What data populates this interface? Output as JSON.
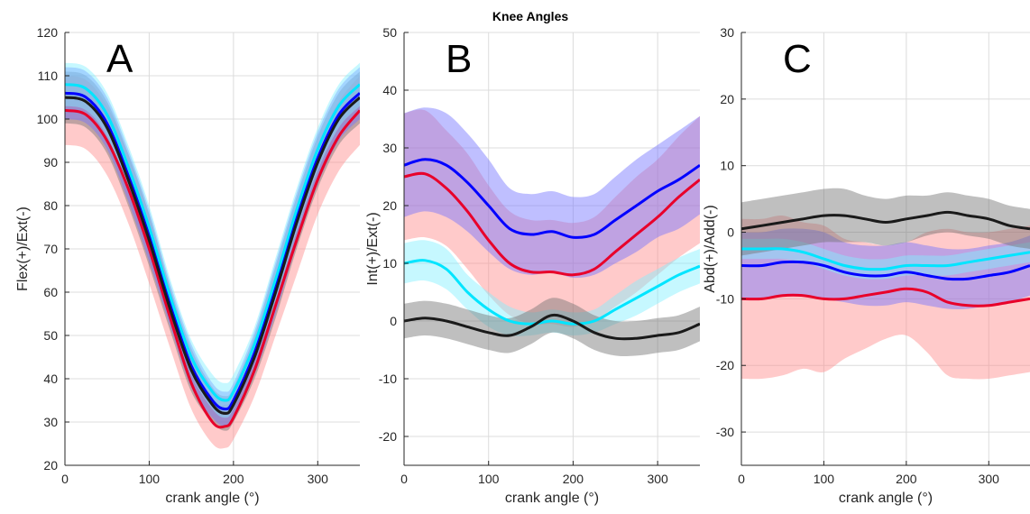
{
  "figure": {
    "title": "Knee Angles"
  },
  "chart_data": [
    {
      "type": "line",
      "panel_label": "A",
      "xlabel": "crank angle (°)",
      "ylabel": "Flex(+)/Ext(-)",
      "xlim": [
        0,
        350
      ],
      "ylim": [
        20,
        120
      ],
      "xticks": [
        0,
        100,
        200,
        300
      ],
      "yticks": [
        20,
        30,
        40,
        50,
        60,
        70,
        80,
        90,
        100,
        110,
        120
      ],
      "grid": true,
      "x": [
        0,
        25,
        50,
        75,
        100,
        125,
        150,
        175,
        190,
        200,
        225,
        250,
        275,
        300,
        325,
        350
      ],
      "series": [
        {
          "color": "#e8002a",
          "band_color": "#ff8a8a",
          "mean": [
            102,
            101,
            95,
            84,
            70,
            54,
            39,
            30,
            29,
            31,
            42,
            57,
            72,
            86,
            96,
            102
          ],
          "sd": [
            8,
            8,
            8,
            8,
            8,
            7,
            6,
            5,
            5,
            5,
            6,
            7,
            8,
            8,
            8,
            8
          ]
        },
        {
          "color": "#606060",
          "band_color": "#707070",
          "mean": [
            105,
            104,
            98,
            86,
            72,
            56,
            42,
            34,
            32,
            34,
            45,
            60,
            76,
            90,
            100,
            105
          ],
          "sd": [
            6,
            6,
            6,
            6,
            6,
            5,
            5,
            4,
            4,
            4,
            5,
            6,
            6,
            6,
            6,
            6
          ]
        },
        {
          "color": "#0000ff",
          "band_color": "#7070ff",
          "mean": [
            106,
            105,
            99,
            87,
            73,
            57,
            43,
            35,
            33,
            35,
            46,
            61,
            77,
            91,
            101,
            106
          ],
          "sd": [
            6,
            6,
            6,
            6,
            6,
            5,
            5,
            4,
            4,
            4,
            5,
            6,
            6,
            6,
            6,
            6
          ]
        },
        {
          "color": "#00e5ff",
          "band_color": "#80f0ff",
          "mean": [
            108,
            107,
            101,
            89,
            75,
            59,
            45,
            37,
            35,
            37,
            48,
            63,
            79,
            93,
            103,
            108
          ],
          "sd": [
            5,
            5,
            5,
            5,
            5,
            4,
            4,
            4,
            4,
            4,
            4,
            5,
            5,
            5,
            5,
            5
          ]
        },
        {
          "color": "#1a1a1a",
          "band_color": null,
          "mean": [
            105,
            104,
            98,
            86,
            72,
            56,
            42,
            34,
            32,
            34,
            45,
            60,
            76,
            90,
            100,
            105
          ],
          "sd": null
        }
      ]
    },
    {
      "type": "line",
      "panel_label": "B",
      "xlabel": "crank angle (°)",
      "ylabel": "Int(+)/Ext(-)",
      "xlim": [
        0,
        350
      ],
      "ylim": [
        -25,
        50
      ],
      "xticks": [
        0,
        100,
        200,
        300
      ],
      "yticks": [
        -20,
        -10,
        0,
        10,
        20,
        30,
        40,
        50
      ],
      "grid": true,
      "x": [
        0,
        25,
        50,
        75,
        100,
        125,
        150,
        175,
        200,
        225,
        250,
        275,
        300,
        325,
        350
      ],
      "series": [
        {
          "color": "#e8002a",
          "band_color": "#ff8a8a",
          "mean": [
            25,
            25.5,
            23,
            19,
            14,
            10,
            8.5,
            8.5,
            8,
            9,
            12,
            15,
            18,
            21.5,
            24.5
          ],
          "sd": [
            11,
            11,
            10,
            10,
            9.5,
            9,
            9,
            9,
            9,
            9,
            9.5,
            10,
            10,
            10.5,
            11
          ]
        },
        {
          "color": "#0000ff",
          "band_color": "#7070ff",
          "mean": [
            27,
            28,
            27,
            24,
            20,
            16,
            15,
            15.5,
            14.5,
            15,
            17.5,
            20,
            22.5,
            24.5,
            27
          ],
          "sd": [
            9,
            9,
            9,
            8.5,
            8,
            7,
            7,
            7,
            7,
            7,
            7.5,
            8,
            8,
            8.5,
            8.5
          ]
        },
        {
          "color": "#00e5ff",
          "band_color": "#80f0ff",
          "mean": [
            10,
            10.5,
            9,
            5,
            2,
            0,
            -0.5,
            0,
            -0.5,
            0,
            2,
            4,
            6,
            8,
            9.5
          ],
          "sd": [
            3.5,
            3.5,
            3.5,
            3,
            3,
            2.5,
            2,
            2,
            2,
            2,
            2.5,
            3,
            3,
            3,
            3
          ]
        },
        {
          "color": "#1a1a1a",
          "band_color": "#707070",
          "mean": [
            0,
            0.5,
            0,
            -1,
            -2,
            -2.5,
            -1,
            1,
            0,
            -2,
            -3,
            -3,
            -2.5,
            -2,
            -0.5
          ],
          "sd": [
            3,
            3,
            3,
            3,
            3,
            3,
            3,
            3,
            3,
            3,
            3,
            3,
            3,
            3,
            3
          ]
        }
      ]
    },
    {
      "type": "line",
      "panel_label": "C",
      "xlabel": "crank angle (°)",
      "ylabel": "Abd(+)/Add(-)",
      "xlim": [
        0,
        350
      ],
      "ylim": [
        -35,
        30
      ],
      "xticks": [
        0,
        100,
        200,
        300
      ],
      "yticks": [
        -30,
        -20,
        -10,
        0,
        10,
        20,
        30
      ],
      "grid": true,
      "x": [
        0,
        25,
        50,
        75,
        100,
        125,
        150,
        175,
        200,
        225,
        250,
        275,
        300,
        325,
        350
      ],
      "series": [
        {
          "color": "#e8002a",
          "band_color": "#ff8a8a",
          "mean": [
            -10,
            -10,
            -9.5,
            -9.5,
            -10,
            -10,
            -9.5,
            -9,
            -8.5,
            -9,
            -10.5,
            -11,
            -11,
            -10.5,
            -10
          ],
          "sd": [
            12,
            12,
            12,
            11,
            11,
            9,
            8,
            7,
            7,
            9,
            11,
            11,
            11,
            11,
            11
          ]
        },
        {
          "color": "#0000ff",
          "band_color": "#7070ff",
          "mean": [
            -5,
            -5,
            -4.5,
            -4.5,
            -5,
            -6,
            -6.5,
            -6.5,
            -6,
            -6.5,
            -7,
            -7,
            -6.5,
            -6,
            -5
          ],
          "sd": [
            5,
            5,
            5,
            5,
            5,
            4.5,
            4.5,
            4.5,
            4.5,
            4.5,
            4.5,
            4.5,
            4.5,
            4.5,
            4.5
          ]
        },
        {
          "color": "#00e5ff",
          "band_color": "#80f0ff",
          "mean": [
            -2.5,
            -2.5,
            -2.5,
            -3,
            -4,
            -5,
            -5.5,
            -5.5,
            -5,
            -5,
            -5,
            -4.5,
            -4,
            -3.5,
            -3
          ],
          "sd": [
            1.5,
            1.5,
            1.5,
            1.5,
            1.5,
            1.5,
            1.5,
            1.5,
            1.5,
            1.5,
            1.5,
            1.5,
            1.5,
            1.5,
            1.5
          ]
        },
        {
          "color": "#1a1a1a",
          "band_color": "#707070",
          "mean": [
            0.5,
            1,
            1.5,
            2,
            2.5,
            2.5,
            2,
            1.5,
            2,
            2.5,
            3,
            2.5,
            2,
            1,
            0.5
          ],
          "sd": [
            4,
            4,
            4,
            4,
            4,
            4,
            3.5,
            3.5,
            3.5,
            3,
            3,
            3,
            3,
            3,
            3
          ]
        }
      ]
    }
  ]
}
